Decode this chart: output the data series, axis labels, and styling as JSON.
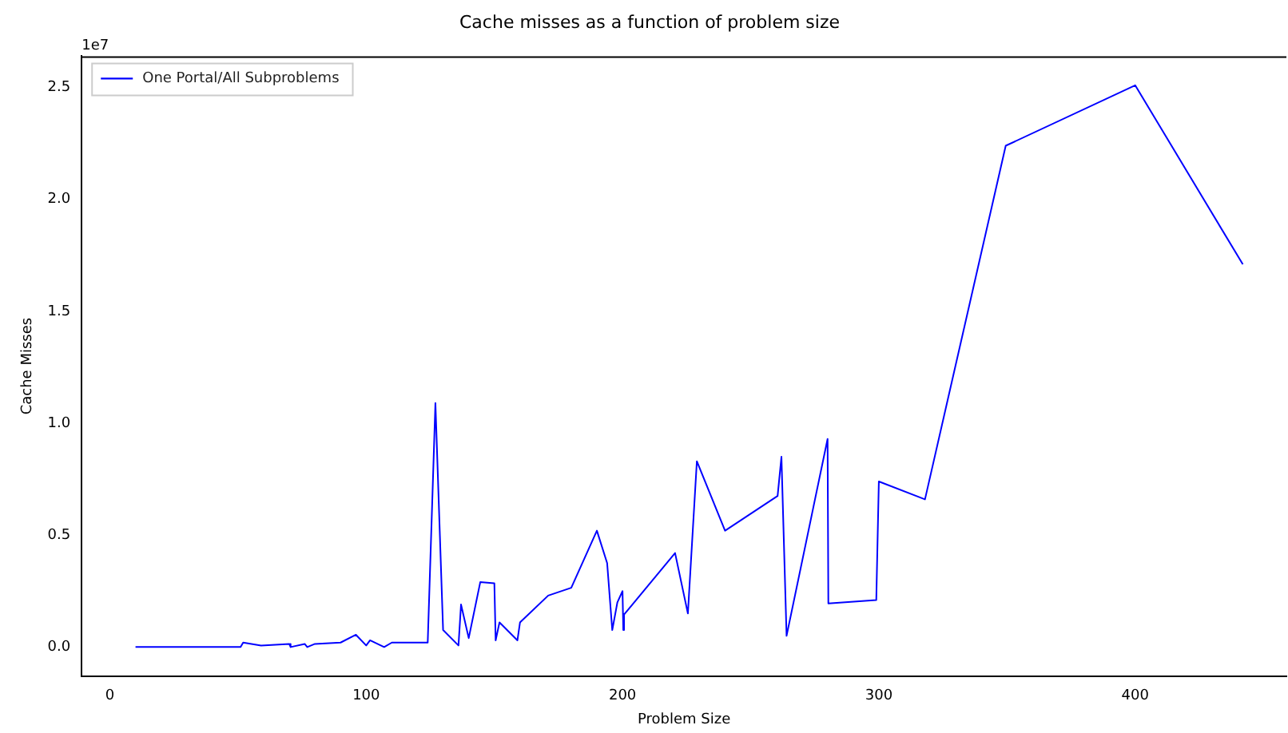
{
  "chart_data": {
    "type": "line",
    "title": "Cache misses as a function of problem size",
    "xlabel": "Problem Size",
    "ylabel": "Cache Misses",
    "annotations": [
      "1e7"
    ],
    "x": [
      10,
      51,
      52,
      59,
      70,
      70.5,
      76,
      77,
      80,
      90,
      96,
      100,
      101.5,
      107,
      110,
      124,
      127,
      130,
      136,
      137,
      140,
      144.5,
      150,
      150.5,
      152,
      159,
      160,
      171,
      180,
      190,
      194,
      196,
      198,
      200,
      200.3,
      200.6,
      220.5,
      225.5,
      229,
      240,
      260.5,
      262,
      264,
      280,
      280.3,
      299,
      300,
      318,
      349.5,
      400,
      442
    ],
    "series": [
      {
        "name": "One Portal/All Subproblems",
        "color": "#0000ff",
        "values": [
          0,
          0,
          0.02,
          0.007,
          0.014,
          0,
          0.014,
          0,
          0.014,
          0.02,
          0.055,
          0.007,
          0.03,
          0,
          0.02,
          0.02,
          1.09,
          0.076,
          0.007,
          0.19,
          0.04,
          0.29,
          0.285,
          0.03,
          0.11,
          0.03,
          0.11,
          0.23,
          0.265,
          0.52,
          0.375,
          0.076,
          0.2,
          0.25,
          0.076,
          0.145,
          0.42,
          0.15,
          0.83,
          0.52,
          0.675,
          0.85,
          0.05,
          0.93,
          0.195,
          0.21,
          0.74,
          0.66,
          2.24,
          2.51,
          1.71
        ]
      }
    ],
    "xlim": [
      -11,
      459
    ],
    "ylim": [
      -0.13,
      2.64
    ],
    "xticks": [
      0,
      100,
      200,
      300,
      400
    ],
    "yticks": [
      {
        "value": 0,
        "label": "0.0"
      },
      {
        "value": 0.5,
        "label": "0.5"
      },
      {
        "value": 1,
        "label": "1.0"
      },
      {
        "value": 1.5,
        "label": "1.5"
      },
      {
        "value": 2,
        "label": "2.0"
      },
      {
        "value": 2.5,
        "label": "2.5"
      }
    ],
    "legend": "top left",
    "grid": false,
    "marker": "none",
    "line_style": "solid"
  }
}
